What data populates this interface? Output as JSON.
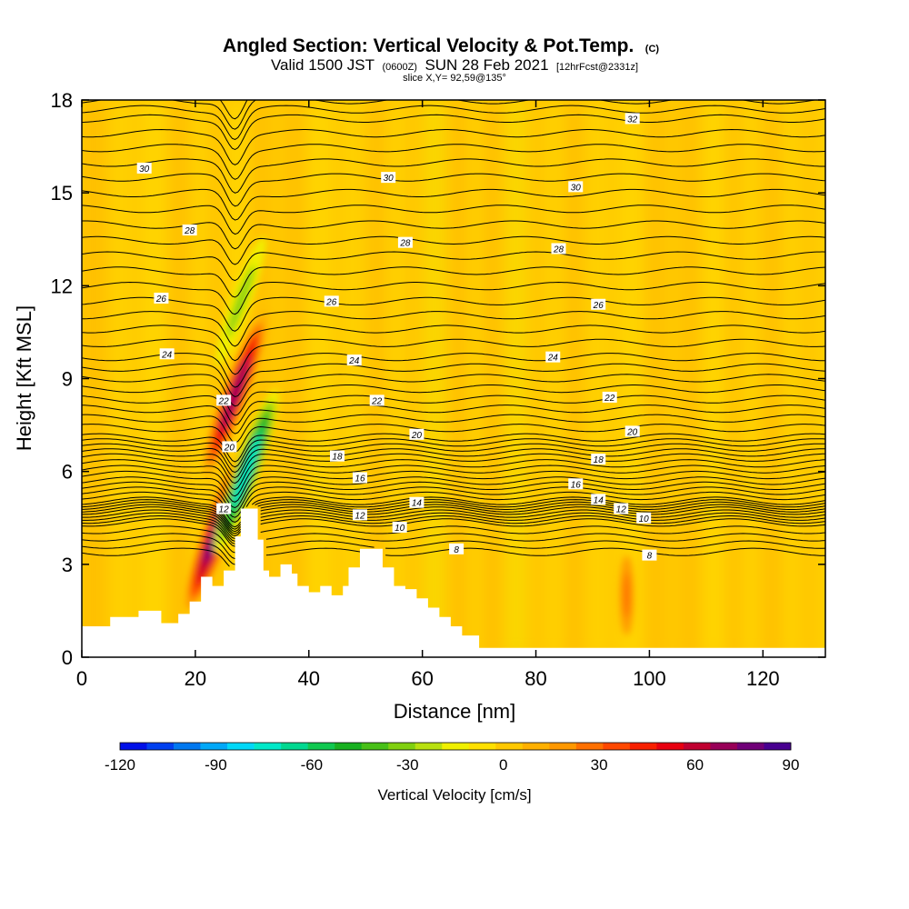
{
  "chart_data": {
    "type": "heatmap",
    "title": "Angled Section: Vertical Velocity & Pot.Temp.",
    "title_units": "(C)",
    "subtitle_valid": "Valid 1500 JST",
    "subtitle_zulu": "(0600Z)",
    "subtitle_date": "SUN 28 Feb 2021",
    "subtitle_fcst": "[12hrFcst@2331z]",
    "slice_label": "slice X,Y= 92,59@135°",
    "xlabel": "Distance [nm]",
    "ylabel": "Height [Kft MSL]",
    "xlim": [
      0,
      131
    ],
    "ylim": [
      0,
      18
    ],
    "x_ticks": [
      0,
      20,
      40,
      60,
      80,
      100,
      120
    ],
    "y_ticks": [
      0,
      3,
      6,
      9,
      12,
      15,
      18
    ],
    "x_tick_labels": [
      "0",
      "20",
      "40",
      "60",
      "80",
      "100",
      "120"
    ],
    "y_tick_labels": [
      "0",
      "3",
      "6",
      "9",
      "12",
      "15",
      "18"
    ],
    "grid": false,
    "legend": "bottom",
    "colorbar": {
      "label": "Vertical Velocity [cm/s]",
      "min": -120,
      "max": 90,
      "step": 7.5,
      "tick_values": [
        -120,
        -90,
        -60,
        -30,
        0,
        30,
        60,
        90
      ],
      "tick_labels": [
        "-120",
        "-90",
        "-60",
        "-30",
        "0",
        "30",
        "60",
        "90"
      ],
      "colors": [
        "#0010e8",
        "#0040f0",
        "#0078f0",
        "#00a8f8",
        "#00d8f8",
        "#00e8c8",
        "#00d890",
        "#10c850",
        "#18b020",
        "#48c018",
        "#80d010",
        "#b8e010",
        "#f0f000",
        "#ffe000",
        "#ffc800",
        "#ffb000",
        "#ff9800",
        "#ff7000",
        "#ff4800",
        "#f82000",
        "#e80010",
        "#c00030",
        "#980058",
        "#700078",
        "#480090"
      ]
    },
    "terrain_kft": [
      [
        0,
        1.0
      ],
      [
        5,
        1.0
      ],
      [
        5,
        1.3
      ],
      [
        10,
        1.3
      ],
      [
        10,
        1.5
      ],
      [
        14,
        1.5
      ],
      [
        14,
        1.1
      ],
      [
        17,
        1.1
      ],
      [
        17,
        1.4
      ],
      [
        19,
        1.4
      ],
      [
        19,
        1.8
      ],
      [
        21,
        1.8
      ],
      [
        21,
        2.6
      ],
      [
        23,
        2.6
      ],
      [
        23,
        2.3
      ],
      [
        25,
        2.3
      ],
      [
        25,
        2.8
      ],
      [
        27,
        2.8
      ],
      [
        27,
        3.9
      ],
      [
        28,
        3.9
      ],
      [
        28,
        4.8
      ],
      [
        31,
        4.8
      ],
      [
        31,
        3.8
      ],
      [
        32,
        3.8
      ],
      [
        32,
        2.8
      ],
      [
        33,
        2.8
      ],
      [
        33,
        2.6
      ],
      [
        35,
        2.6
      ],
      [
        35,
        3.0
      ],
      [
        37,
        3.0
      ],
      [
        37,
        2.7
      ],
      [
        38,
        2.7
      ],
      [
        38,
        2.3
      ],
      [
        40,
        2.3
      ],
      [
        40,
        2.1
      ],
      [
        42,
        2.1
      ],
      [
        42,
        2.3
      ],
      [
        44,
        2.3
      ],
      [
        44,
        2.0
      ],
      [
        46,
        2.0
      ],
      [
        46,
        2.3
      ],
      [
        47,
        2.3
      ],
      [
        47,
        2.9
      ],
      [
        49,
        2.9
      ],
      [
        49,
        3.5
      ],
      [
        53,
        3.5
      ],
      [
        53,
        2.9
      ],
      [
        55,
        2.9
      ],
      [
        55,
        2.3
      ],
      [
        57,
        2.3
      ],
      [
        57,
        2.2
      ],
      [
        59,
        2.2
      ],
      [
        59,
        1.9
      ],
      [
        61,
        1.9
      ],
      [
        61,
        1.6
      ],
      [
        63,
        1.6
      ],
      [
        63,
        1.3
      ],
      [
        65,
        1.3
      ],
      [
        65,
        1.0
      ],
      [
        67,
        1.0
      ],
      [
        67,
        0.7
      ],
      [
        70,
        0.7
      ],
      [
        70,
        0.3
      ],
      [
        131,
        0.3
      ]
    ],
    "theta_contour_labels": [
      {
        "label": "32",
        "x": 97,
        "y": 17.4
      },
      {
        "label": "30",
        "x": 11,
        "y": 15.8
      },
      {
        "label": "30",
        "x": 54,
        "y": 15.5
      },
      {
        "label": "30",
        "x": 87,
        "y": 15.2
      },
      {
        "label": "28",
        "x": 19,
        "y": 13.8
      },
      {
        "label": "28",
        "x": 57,
        "y": 13.4
      },
      {
        "label": "28",
        "x": 84,
        "y": 13.2
      },
      {
        "label": "26",
        "x": 14,
        "y": 11.6
      },
      {
        "label": "26",
        "x": 44,
        "y": 11.5
      },
      {
        "label": "26",
        "x": 91,
        "y": 11.4
      },
      {
        "label": "24",
        "x": 15,
        "y": 9.8
      },
      {
        "label": "24",
        "x": 48,
        "y": 9.6
      },
      {
        "label": "24",
        "x": 83,
        "y": 9.7
      },
      {
        "label": "22",
        "x": 25,
        "y": 8.3
      },
      {
        "label": "22",
        "x": 52,
        "y": 8.3
      },
      {
        "label": "22",
        "x": 93,
        "y": 8.4
      },
      {
        "label": "20",
        "x": 26,
        "y": 6.8
      },
      {
        "label": "20",
        "x": 59,
        "y": 7.2
      },
      {
        "label": "20",
        "x": 97,
        "y": 7.3
      },
      {
        "label": "18",
        "x": 45,
        "y": 6.5
      },
      {
        "label": "18",
        "x": 91,
        "y": 6.4
      },
      {
        "label": "16",
        "x": 49,
        "y": 5.8
      },
      {
        "label": "16",
        "x": 87,
        "y": 5.6
      },
      {
        "label": "14",
        "x": 59,
        "y": 5.0
      },
      {
        "label": "14",
        "x": 91,
        "y": 5.1
      },
      {
        "label": "12",
        "x": 25,
        "y": 4.8
      },
      {
        "label": "12",
        "x": 49,
        "y": 4.6
      },
      {
        "label": "12",
        "x": 95,
        "y": 4.8
      },
      {
        "label": "10",
        "x": 56,
        "y": 4.2
      },
      {
        "label": "10",
        "x": 99,
        "y": 4.5
      },
      {
        "label": "8",
        "x": 66,
        "y": 3.5
      },
      {
        "label": "8",
        "x": 100,
        "y": 3.3
      }
    ],
    "w_features_cm_s": [
      {
        "name": "updraft-core",
        "x": 24,
        "y": 4.2,
        "value": 80
      },
      {
        "name": "updraft-upper",
        "x": 27,
        "y": 8.5,
        "value": 70
      },
      {
        "name": "downdraft-lee",
        "x": 29,
        "y": 6.0,
        "value": -75
      },
      {
        "name": "downdraft-upper",
        "x": 28,
        "y": 11.5,
        "value": -35
      },
      {
        "name": "updraft-east",
        "x": 96,
        "y": 2.0,
        "value": 30
      }
    ]
  }
}
